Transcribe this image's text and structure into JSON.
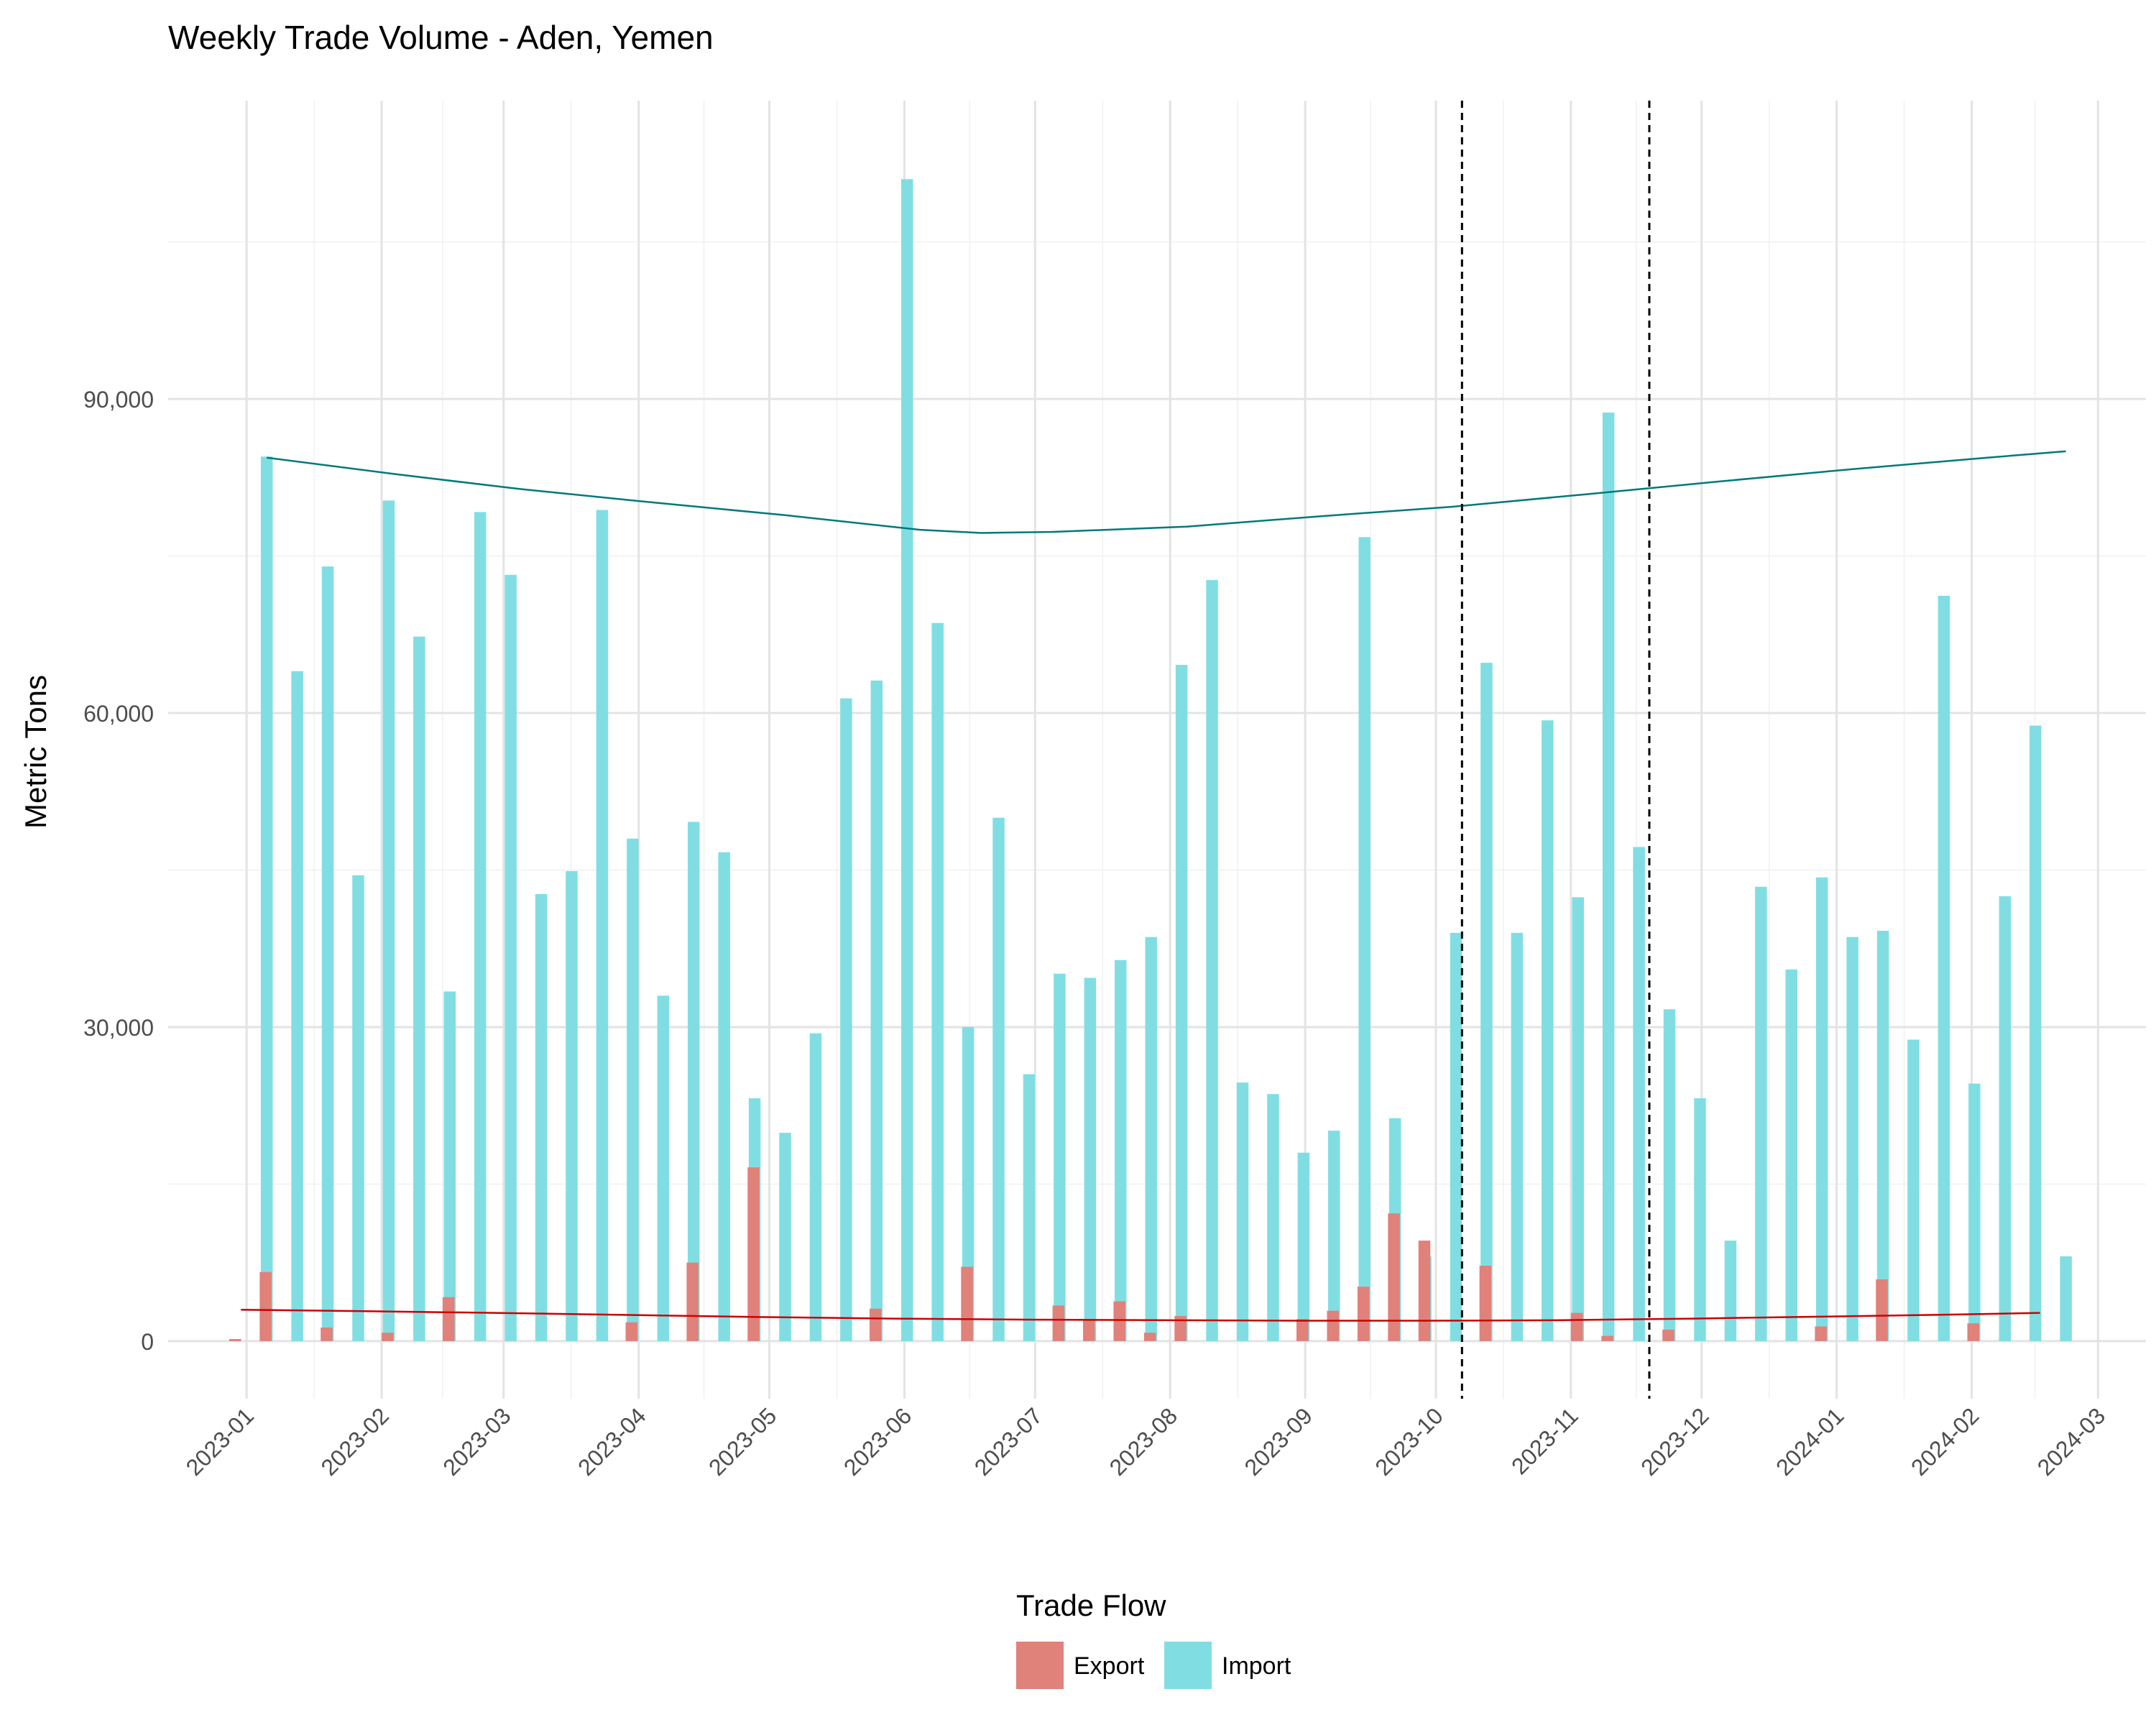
{
  "chart_data": {
    "type": "bar",
    "title": "Weekly Trade Volume - Aden, Yemen",
    "xlabel": "",
    "ylabel": "Metric Tons",
    "ylim": [
      -5500,
      118500
    ],
    "y_ticks": [
      0,
      30000,
      60000,
      90000
    ],
    "y_tick_labels": [
      "0",
      "30,000",
      "60,000",
      "90,000"
    ],
    "x_range": [
      "2022-12-14",
      "2024-03-12"
    ],
    "x_ticks": [
      "2023-01-01",
      "2023-02-01",
      "2023-03-01",
      "2023-04-01",
      "2023-05-01",
      "2023-06-01",
      "2023-07-01",
      "2023-08-01",
      "2023-09-01",
      "2023-10-01",
      "2023-11-01",
      "2023-12-01",
      "2024-01-01",
      "2024-02-01",
      "2024-03-01"
    ],
    "x_tick_labels": [
      "2023-01",
      "2023-02",
      "2023-03",
      "2023-04",
      "2023-05",
      "2023-06",
      "2023-07",
      "2023-08",
      "2023-09",
      "2023-10",
      "2023-11",
      "2023-12",
      "2024-01",
      "2024-02",
      "2024-03"
    ],
    "grid": true,
    "legend": {
      "title": "Trade Flow",
      "position": "bottom",
      "entries": [
        "Export",
        "Import"
      ]
    },
    "colors": {
      "Export": "#E0817A",
      "Import": "#80DEE3",
      "export_trend": "#CC0000",
      "import_trend": "#00797B",
      "event_line": "#000000"
    },
    "x": [
      "2023-01-02",
      "2023-01-09",
      "2023-01-16",
      "2023-01-23",
      "2023-01-30",
      "2023-02-06",
      "2023-02-13",
      "2023-02-20",
      "2023-02-27",
      "2023-03-06",
      "2023-03-13",
      "2023-03-20",
      "2023-03-27",
      "2023-04-03",
      "2023-04-10",
      "2023-04-17",
      "2023-04-24",
      "2023-05-01",
      "2023-05-08",
      "2023-05-15",
      "2023-05-22",
      "2023-05-29",
      "2023-06-05",
      "2023-06-12",
      "2023-06-19",
      "2023-06-26",
      "2023-07-03",
      "2023-07-10",
      "2023-07-17",
      "2023-07-24",
      "2023-07-31",
      "2023-08-07",
      "2023-08-14",
      "2023-08-21",
      "2023-08-28",
      "2023-09-04",
      "2023-09-11",
      "2023-09-18",
      "2023-09-25",
      "2023-10-02",
      "2023-10-09",
      "2023-10-16",
      "2023-10-23",
      "2023-10-30",
      "2023-11-06",
      "2023-11-13",
      "2023-11-20",
      "2023-11-27",
      "2023-12-04",
      "2023-12-11",
      "2023-12-18",
      "2023-12-25",
      "2024-01-01",
      "2024-01-08",
      "2024-01-15",
      "2024-01-22",
      "2024-01-29",
      "2024-02-05",
      "2024-02-12",
      "2024-02-19"
    ],
    "series": [
      {
        "name": "Export",
        "values": [
          200,
          6600,
          0,
          1300,
          0,
          800,
          0,
          4200,
          0,
          0,
          0,
          0,
          0,
          1800,
          0,
          7500,
          0,
          16600,
          0,
          0,
          0,
          3100,
          0,
          0,
          7100,
          0,
          0,
          3400,
          2000,
          3800,
          800,
          2400,
          0,
          0,
          0,
          2100,
          2900,
          5200,
          12200,
          9600,
          0,
          7200,
          0,
          0,
          2700,
          500,
          0,
          1100,
          0,
          0,
          0,
          0,
          1400,
          0,
          5900,
          0,
          0,
          1700,
          0,
          0
        ]
      },
      {
        "name": "Import",
        "values": [
          84500,
          64000,
          74000,
          44500,
          80300,
          67300,
          33400,
          79200,
          73200,
          42700,
          44900,
          79400,
          48000,
          33000,
          49600,
          46700,
          23200,
          19900,
          29400,
          61400,
          63100,
          111000,
          68600,
          30000,
          50000,
          25500,
          35100,
          34700,
          36400,
          38600,
          64600,
          72700,
          24700,
          23600,
          18000,
          20100,
          76800,
          21300,
          8100,
          39000,
          64800,
          39000,
          59300,
          42400,
          88700,
          47200,
          31700,
          23200,
          9600,
          43400,
          35500,
          44300,
          38600,
          39200,
          28800,
          71200,
          24600,
          42500,
          58800,
          8100
        ]
      }
    ],
    "trend_lines": [
      {
        "series": "Import",
        "x": [
          "2023-01-02",
          "2023-02-01",
          "2023-03-01",
          "2023-04-01",
          "2023-05-01",
          "2023-06-01",
          "2023-06-15",
          "2023-07-01",
          "2023-08-01",
          "2023-09-01",
          "2023-10-01",
          "2023-11-01",
          "2023-12-01",
          "2024-01-01",
          "2024-02-01",
          "2024-02-19"
        ],
        "values": [
          84400,
          82800,
          81400,
          80100,
          78900,
          77500,
          77200,
          77300,
          77800,
          78800,
          79700,
          80900,
          82100,
          83300,
          84400,
          85000
        ]
      },
      {
        "series": "Export",
        "x": [
          "2023-01-02",
          "2023-02-01",
          "2023-03-01",
          "2023-04-01",
          "2023-05-01",
          "2023-06-01",
          "2023-07-01",
          "2023-08-01",
          "2023-09-01",
          "2023-10-01",
          "2023-11-01",
          "2023-12-01",
          "2024-01-01",
          "2024-02-01",
          "2024-02-19"
        ],
        "values": [
          3000,
          2850,
          2700,
          2500,
          2300,
          2150,
          2050,
          2000,
          1950,
          1950,
          2000,
          2150,
          2350,
          2550,
          2700
        ]
      }
    ],
    "vertical_lines": [
      "2023-10-07",
      "2023-11-19"
    ]
  }
}
